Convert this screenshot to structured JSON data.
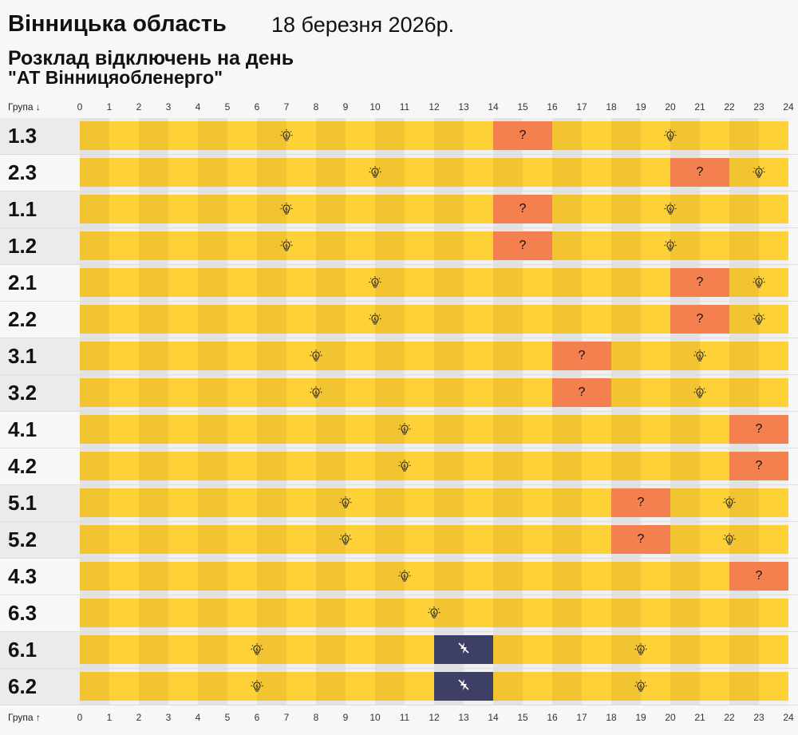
{
  "header": {
    "region": "Вінницька область",
    "date": "18 березня 2026р.",
    "subtitle": "Розклад відключень на день",
    "company": "\"АТ Вінницяобленерго\""
  },
  "axis": {
    "group_label_top": "Група ↓",
    "group_label_bottom": "Група ↑",
    "hours": [
      "0",
      "1",
      "2",
      "3",
      "4",
      "5",
      "6",
      "7",
      "8",
      "9",
      "10",
      "11",
      "12",
      "13",
      "14",
      "15",
      "16",
      "17",
      "18",
      "19",
      "20",
      "21",
      "22",
      "23",
      "24"
    ]
  },
  "colors": {
    "power_on_even": "#f3c432",
    "power_on_odd": "#fed136",
    "possible_outage": "#f47f4f",
    "outage": "#3d3f66"
  },
  "legend_marks": {
    "possible": "?"
  },
  "rows": [
    {
      "group": "1.3",
      "shade": true,
      "icons": [
        7,
        20
      ],
      "segments": [
        {
          "type": "possible",
          "from": 14,
          "to": 16
        }
      ]
    },
    {
      "group": "2.3",
      "shade": false,
      "icons": [
        10,
        23
      ],
      "segments": [
        {
          "type": "possible",
          "from": 20,
          "to": 22
        }
      ]
    },
    {
      "group": "1.1",
      "shade": true,
      "icons": [
        7,
        20
      ],
      "segments": [
        {
          "type": "possible",
          "from": 14,
          "to": 16
        }
      ]
    },
    {
      "group": "1.2",
      "shade": true,
      "icons": [
        7,
        20
      ],
      "segments": [
        {
          "type": "possible",
          "from": 14,
          "to": 16
        }
      ]
    },
    {
      "group": "2.1",
      "shade": false,
      "icons": [
        10,
        23
      ],
      "segments": [
        {
          "type": "possible",
          "from": 20,
          "to": 22
        }
      ]
    },
    {
      "group": "2.2",
      "shade": false,
      "icons": [
        10,
        23
      ],
      "segments": [
        {
          "type": "possible",
          "from": 20,
          "to": 22
        }
      ]
    },
    {
      "group": "3.1",
      "shade": true,
      "icons": [
        8,
        21
      ],
      "segments": [
        {
          "type": "possible",
          "from": 16,
          "to": 18
        }
      ]
    },
    {
      "group": "3.2",
      "shade": true,
      "icons": [
        8,
        21
      ],
      "segments": [
        {
          "type": "possible",
          "from": 16,
          "to": 18
        }
      ]
    },
    {
      "group": "4.1",
      "shade": false,
      "icons": [
        11
      ],
      "segments": [
        {
          "type": "possible",
          "from": 22,
          "to": 24
        }
      ]
    },
    {
      "group": "4.2",
      "shade": false,
      "icons": [
        11
      ],
      "segments": [
        {
          "type": "possible",
          "from": 22,
          "to": 24
        }
      ]
    },
    {
      "group": "5.1",
      "shade": true,
      "icons": [
        9,
        22
      ],
      "segments": [
        {
          "type": "possible",
          "from": 18,
          "to": 20
        }
      ]
    },
    {
      "group": "5.2",
      "shade": true,
      "icons": [
        9,
        22
      ],
      "segments": [
        {
          "type": "possible",
          "from": 18,
          "to": 20
        }
      ]
    },
    {
      "group": "4.3",
      "shade": false,
      "icons": [
        11
      ],
      "segments": [
        {
          "type": "possible",
          "from": 22,
          "to": 24
        }
      ]
    },
    {
      "group": "6.3",
      "shade": false,
      "icons": [
        12
      ],
      "segments": []
    },
    {
      "group": "6.1",
      "shade": true,
      "icons": [
        6,
        19
      ],
      "segments": [
        {
          "type": "outage",
          "from": 12,
          "to": 14
        }
      ]
    },
    {
      "group": "6.2",
      "shade": true,
      "icons": [
        6,
        19
      ],
      "segments": [
        {
          "type": "outage",
          "from": 12,
          "to": 14
        }
      ]
    }
  ]
}
